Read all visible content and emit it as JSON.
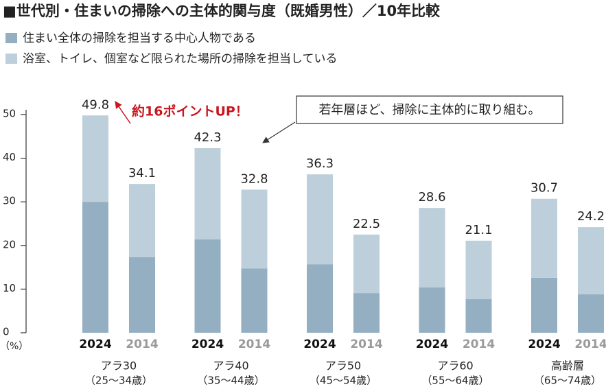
{
  "chart_data": {
    "type": "stacked_bar",
    "title": "■世代別・住まいの掃除への主体的関与度（既婚男性）／10年比較",
    "y_unit": "（%）",
    "categories": [
      "2024",
      "2014",
      "2024",
      "2014",
      "2024",
      "2014",
      "2024",
      "2014",
      "2024",
      "2014"
    ],
    "groups": [
      {
        "label": "アラ30",
        "sublabel": "（25〜34歳）"
      },
      {
        "label": "アラ40",
        "sublabel": "（35〜44歳）"
      },
      {
        "label": "アラ50",
        "sublabel": "（45〜54歳）"
      },
      {
        "label": "アラ60",
        "sublabel": "（55〜64歳）"
      },
      {
        "label": "高齢層",
        "sublabel": "（65〜74歳）"
      }
    ],
    "series": [
      {
        "name": "住まい全体の掃除を担当する中心人物である",
        "color": "#94afc1",
        "values": [
          30.0,
          17.3,
          21.4,
          14.7,
          15.7,
          9.1,
          10.4,
          7.7,
          12.6,
          8.8
        ]
      },
      {
        "name": "浴室、トイレ、個室など限られた場所の掃除を担当している",
        "color": "#bccfdb",
        "values": [
          19.8,
          16.8,
          20.9,
          18.1,
          20.6,
          13.4,
          18.2,
          13.4,
          18.1,
          15.4
        ]
      }
    ],
    "totals": [
      49.8,
      34.1,
      42.3,
      32.8,
      36.3,
      22.5,
      28.6,
      21.1,
      30.7,
      24.2
    ],
    "ylim": [
      0,
      50
    ],
    "yticks": [
      0,
      10,
      20,
      30,
      40,
      50
    ],
    "grid": false,
    "annotations": [
      "約16ポイントUP！",
      "若年層ほど、掃除に主体的に取り組む。"
    ]
  }
}
